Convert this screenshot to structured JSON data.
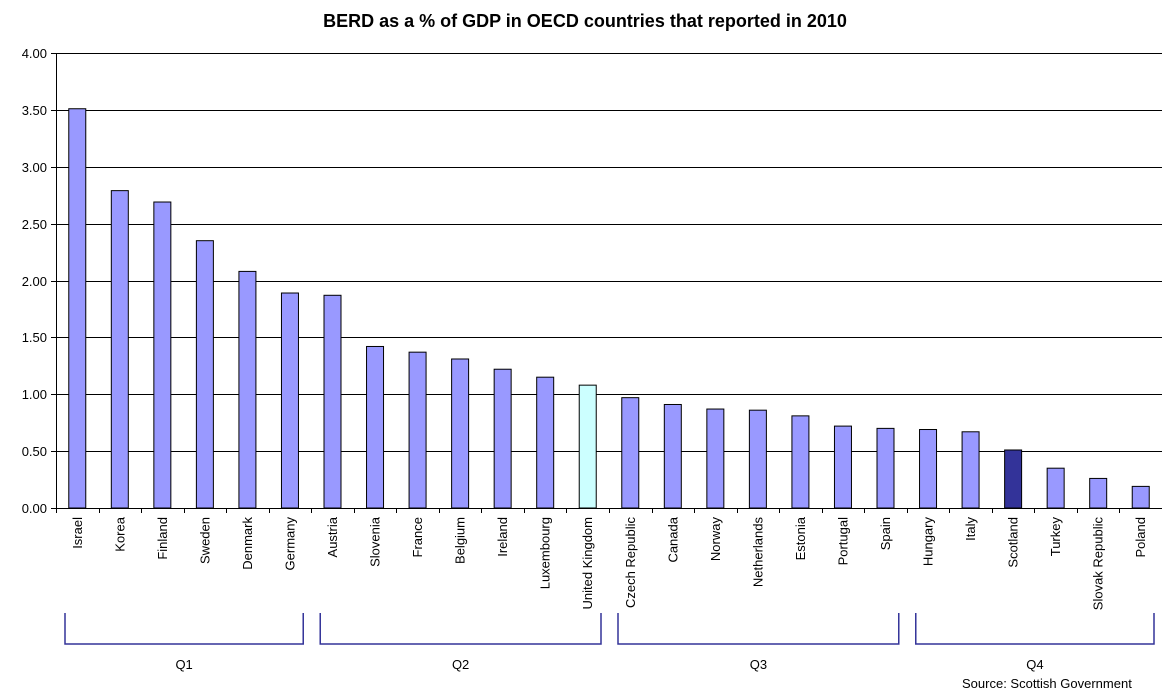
{
  "chart_data": {
    "type": "bar",
    "title": "BERD as a % of GDP in OECD countries that reported in 2010",
    "xlabel": "",
    "ylabel": "",
    "ylim": [
      0,
      4
    ],
    "yticks": [
      "0.00",
      "0.50",
      "1.00",
      "1.50",
      "2.00",
      "2.50",
      "3.00",
      "3.50",
      "4.00"
    ],
    "grid": true,
    "legend": "none",
    "categories": [
      "Israel",
      "Korea",
      "Finland",
      "Sweden",
      "Denmark",
      "Germany",
      "Austria",
      "Slovenia",
      "France",
      "Belgium",
      "Ireland",
      "Luxembourg",
      "United Kingdom",
      "Czech Republic",
      "Canada",
      "Norway",
      "Netherlands",
      "Estonia",
      "Portugal",
      "Spain",
      "Hungary",
      "Italy",
      "Scotland",
      "Turkey",
      "Slovak Republic",
      "Poland"
    ],
    "values": [
      3.51,
      2.79,
      2.69,
      2.35,
      2.08,
      1.89,
      1.87,
      1.42,
      1.37,
      1.31,
      1.22,
      1.15,
      1.08,
      0.97,
      0.91,
      0.87,
      0.86,
      0.81,
      0.72,
      0.7,
      0.69,
      0.67,
      0.51,
      0.35,
      0.26,
      0.19
    ],
    "colors": {
      "default": "#9999ff",
      "United Kingdom": "#ccffff",
      "Scotland": "#333399",
      "outline": "#000000",
      "bracket": "#333399"
    },
    "quartiles": [
      {
        "label": "Q1",
        "start": 0,
        "end": 5
      },
      {
        "label": "Q2",
        "start": 6,
        "end": 12
      },
      {
        "label": "Q3",
        "start": 13,
        "end": 19
      },
      {
        "label": "Q4",
        "start": 20,
        "end": 25
      }
    ],
    "source": "Source: Scottish Government"
  }
}
